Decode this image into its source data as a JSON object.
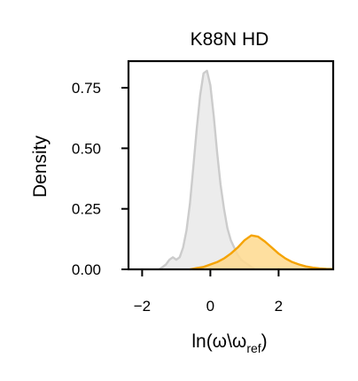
{
  "chart_data": {
    "type": "area",
    "title": "K88N HD",
    "xlabel_main": "ln(ω\\ω",
    "xlabel_sub": "ref",
    "xlabel_close": ")",
    "ylabel": "Density",
    "xlim": [
      -2.4,
      3.6
    ],
    "ylim": [
      0,
      0.86
    ],
    "x_ticks": [
      -2,
      0,
      2
    ],
    "x_tick_labels": [
      "−2",
      "0",
      "2"
    ],
    "y_ticks": [
      0.0,
      0.25,
      0.5,
      0.75
    ],
    "y_tick_labels": [
      "0.00",
      "0.25",
      "0.50",
      "0.75"
    ],
    "series": [
      {
        "color": "#cccccc",
        "fill": "#ececec",
        "x": [
          -1.5,
          -1.4,
          -1.3,
          -1.2,
          -1.1,
          -1.0,
          -0.9,
          -0.8,
          -0.7,
          -0.6,
          -0.5,
          -0.4,
          -0.3,
          -0.2,
          -0.1,
          0.0,
          0.1,
          0.2,
          0.3,
          0.4,
          0.5,
          0.6,
          0.7,
          0.8,
          0.9,
          1.0,
          1.1,
          1.2,
          1.3
        ],
        "y": [
          0.0,
          0.01,
          0.02,
          0.04,
          0.05,
          0.04,
          0.05,
          0.09,
          0.16,
          0.27,
          0.42,
          0.58,
          0.72,
          0.81,
          0.82,
          0.76,
          0.63,
          0.48,
          0.35,
          0.25,
          0.17,
          0.12,
          0.09,
          0.06,
          0.04,
          0.03,
          0.02,
          0.01,
          0.0
        ]
      },
      {
        "color": "#f5a300",
        "fill": "#fed98e",
        "x": [
          -0.6,
          -0.4,
          -0.2,
          0.0,
          0.2,
          0.4,
          0.6,
          0.8,
          1.0,
          1.2,
          1.4,
          1.6,
          1.8,
          2.0,
          2.2,
          2.4,
          2.6,
          2.8,
          3.0,
          3.2,
          3.4,
          3.6
        ],
        "y": [
          0.0,
          0.005,
          0.01,
          0.02,
          0.03,
          0.045,
          0.065,
          0.09,
          0.12,
          0.14,
          0.135,
          0.115,
          0.09,
          0.065,
          0.045,
          0.03,
          0.02,
          0.012,
          0.007,
          0.004,
          0.002,
          0.001
        ]
      }
    ]
  }
}
